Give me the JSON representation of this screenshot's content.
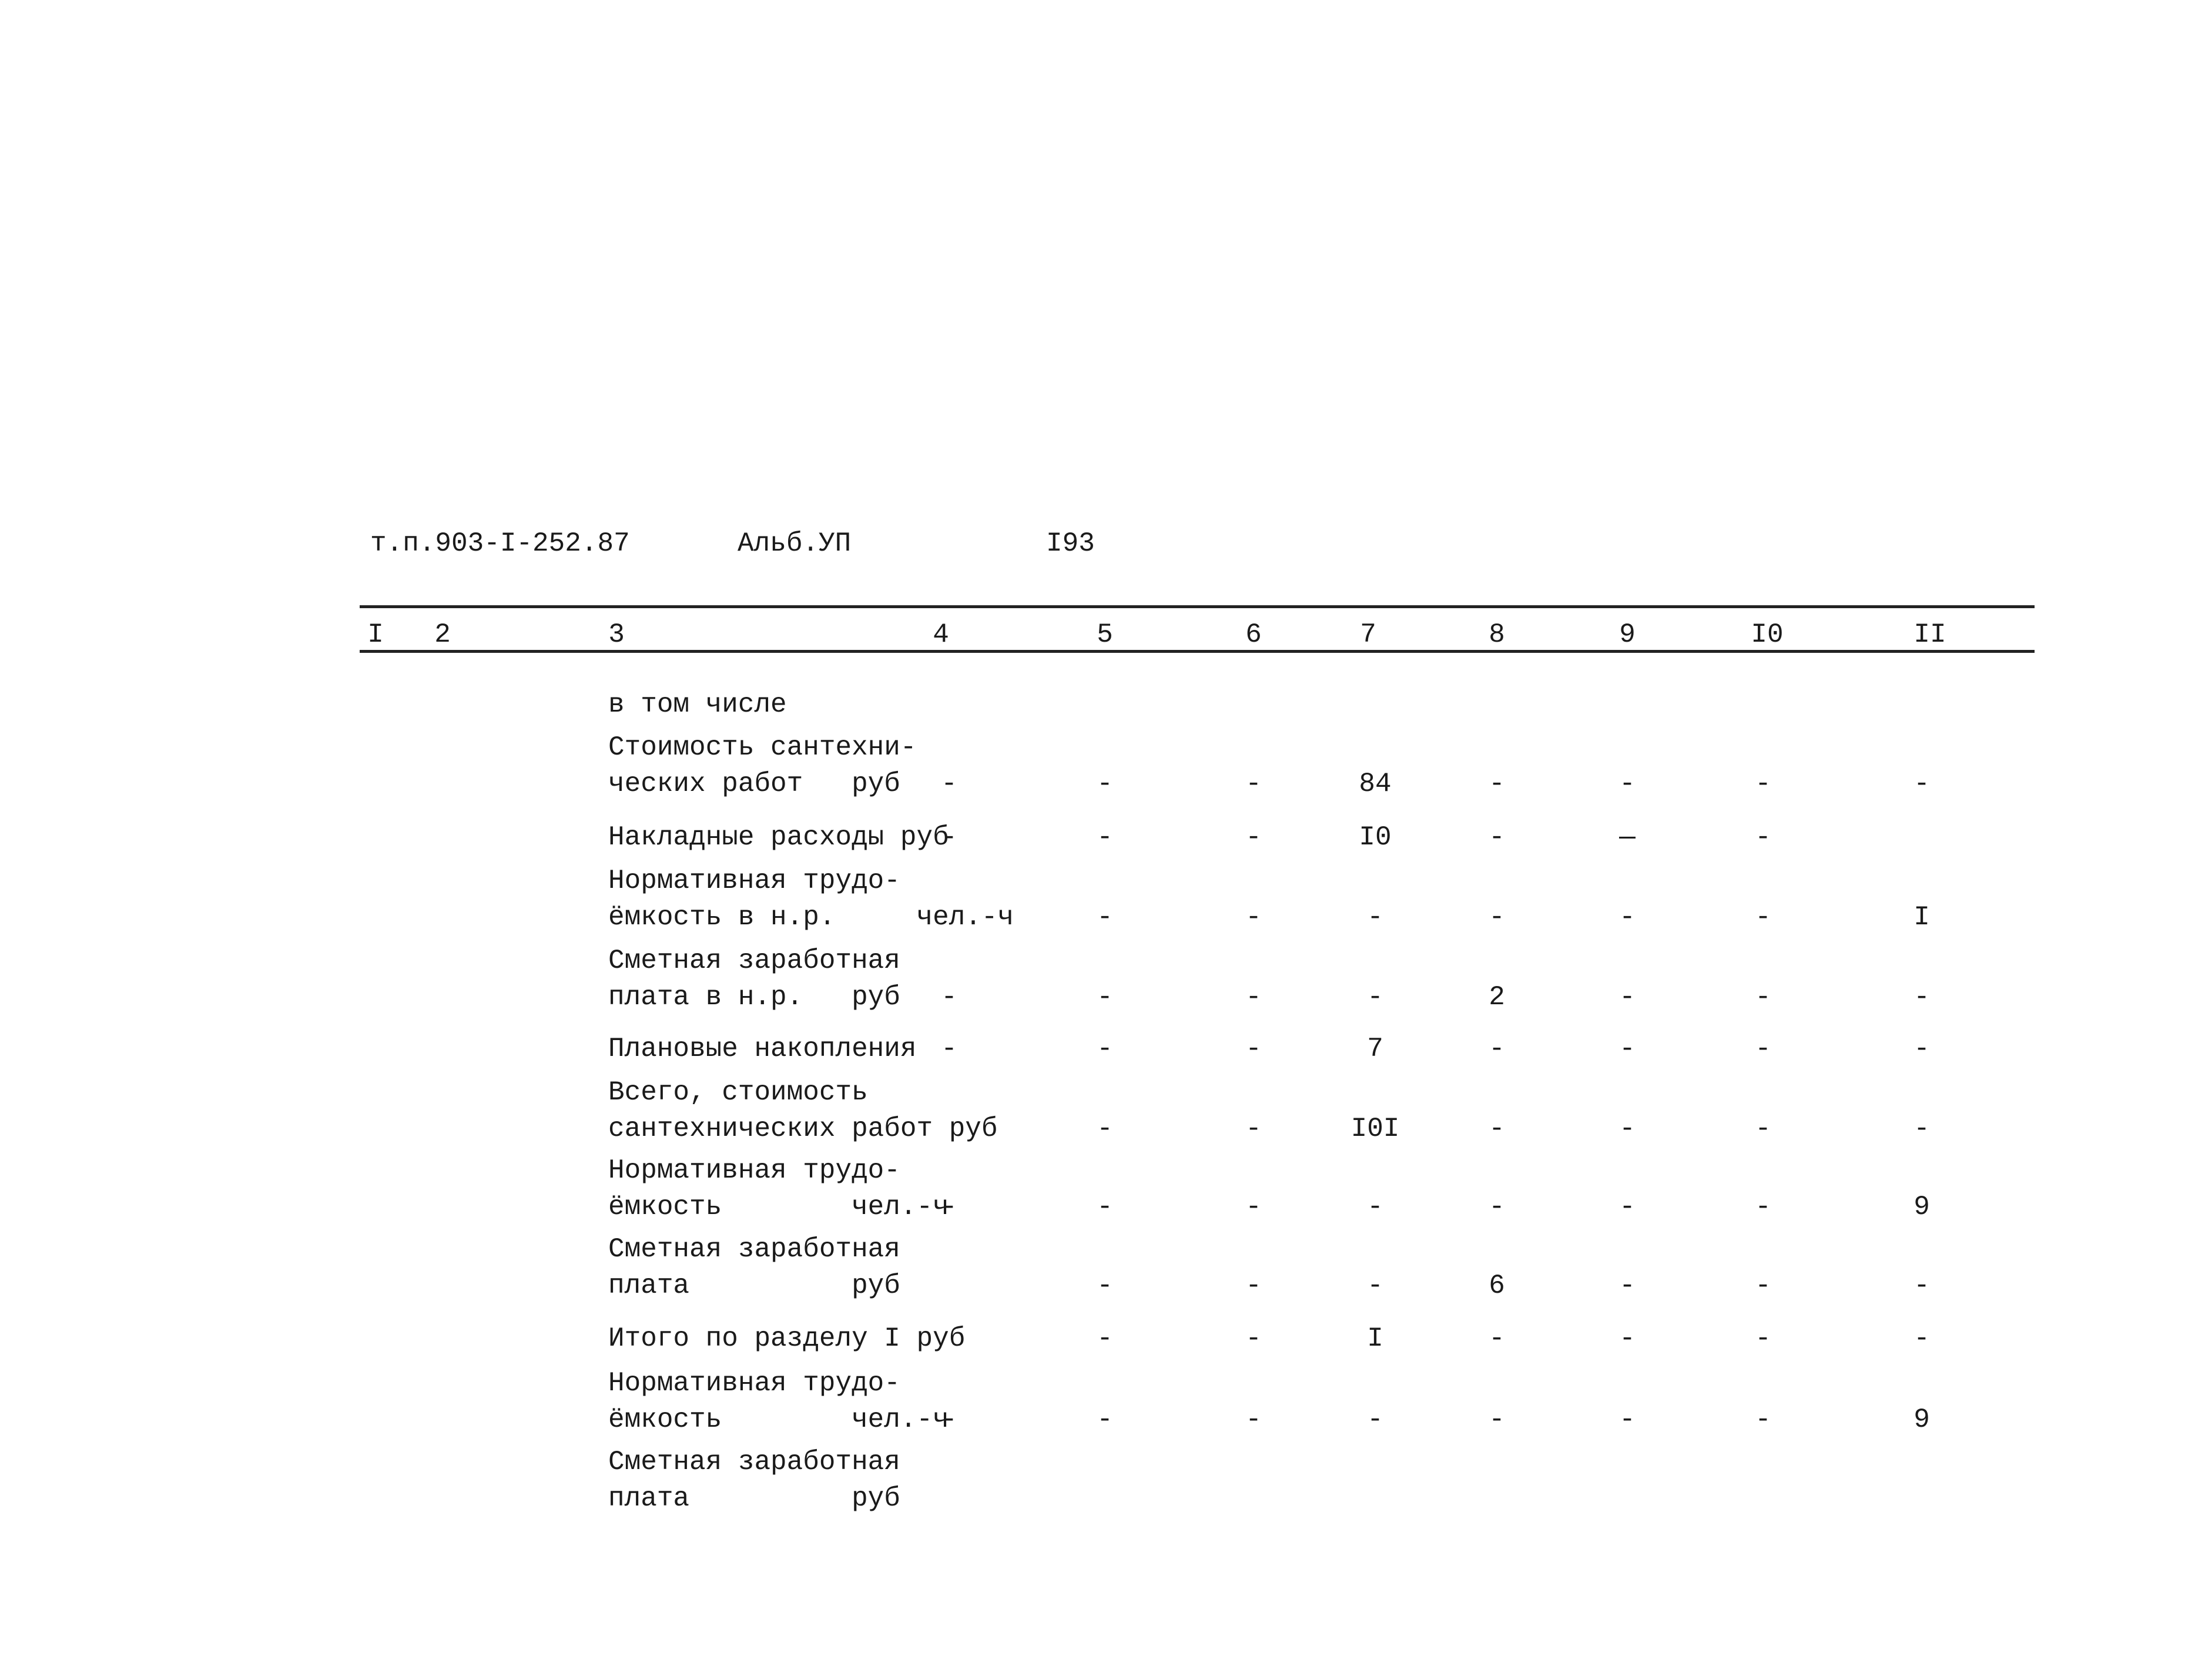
{
  "header": {
    "doc": "т.п.903-I-252.87",
    "album": "Альб.УП",
    "page": "I93"
  },
  "columns": [
    "I",
    "2",
    "3",
    "4",
    "5",
    "6",
    "7",
    "8",
    "9",
    "I0",
    "II"
  ],
  "section": "в том числе",
  "rows": [
    {
      "label": [
        "Стоимость сантехни-",
        "ческих работ   руб"
      ],
      "cells": [
        "-",
        "-",
        "-",
        "84",
        "-",
        "-",
        "-",
        "-"
      ]
    },
    {
      "label": [
        "Накладные расходы руб"
      ],
      "cells": [
        "-",
        "-",
        "-",
        "I0",
        "-",
        "—",
        "-",
        null
      ]
    },
    {
      "label": [
        "Нормативная трудо-",
        "ёмкость в н.р.     чел.-ч"
      ],
      "cells": [
        null,
        "-",
        "-",
        "-",
        "-",
        "-",
        "-",
        "I"
      ]
    },
    {
      "label": [
        "Сметная заработная",
        "плата в н.р.   руб"
      ],
      "cells": [
        "-",
        "-",
        "-",
        "-",
        "2",
        "-",
        "-",
        "-"
      ]
    },
    {
      "label": [
        "Плановые накопления"
      ],
      "cells": [
        "-",
        "-",
        "-",
        "7",
        "-",
        "-",
        "-",
        "-"
      ]
    },
    {
      "label": [
        "Всего, стоимость",
        "сантехнических работ руб"
      ],
      "cells": [
        null,
        "-",
        "-",
        "I0I",
        "-",
        "-",
        "-",
        "-"
      ]
    },
    {
      "label": [
        "Нормативная трудо-",
        "ёмкость        чел.-ч"
      ],
      "cells": [
        "-",
        "-",
        "-",
        "-",
        "-",
        "-",
        "-",
        "9"
      ]
    },
    {
      "label": [
        "Сметная заработная",
        "плата          руб"
      ],
      "cells": [
        null,
        "-",
        "-",
        "-",
        "6",
        "-",
        "-",
        "-"
      ]
    },
    {
      "label": [
        "Итого по разделу I руб"
      ],
      "cells": [
        null,
        "-",
        "-",
        "I",
        "-",
        "-",
        "-",
        "-"
      ]
    },
    {
      "label": [
        "Нормативная трудо-",
        "ёмкость        чел.-ч"
      ],
      "cells": [
        "-",
        "-",
        "-",
        "-",
        "-",
        "-",
        "-",
        "9"
      ]
    },
    {
      "label": [
        "Сметная заработная",
        "плата          руб"
      ]
    }
  ]
}
